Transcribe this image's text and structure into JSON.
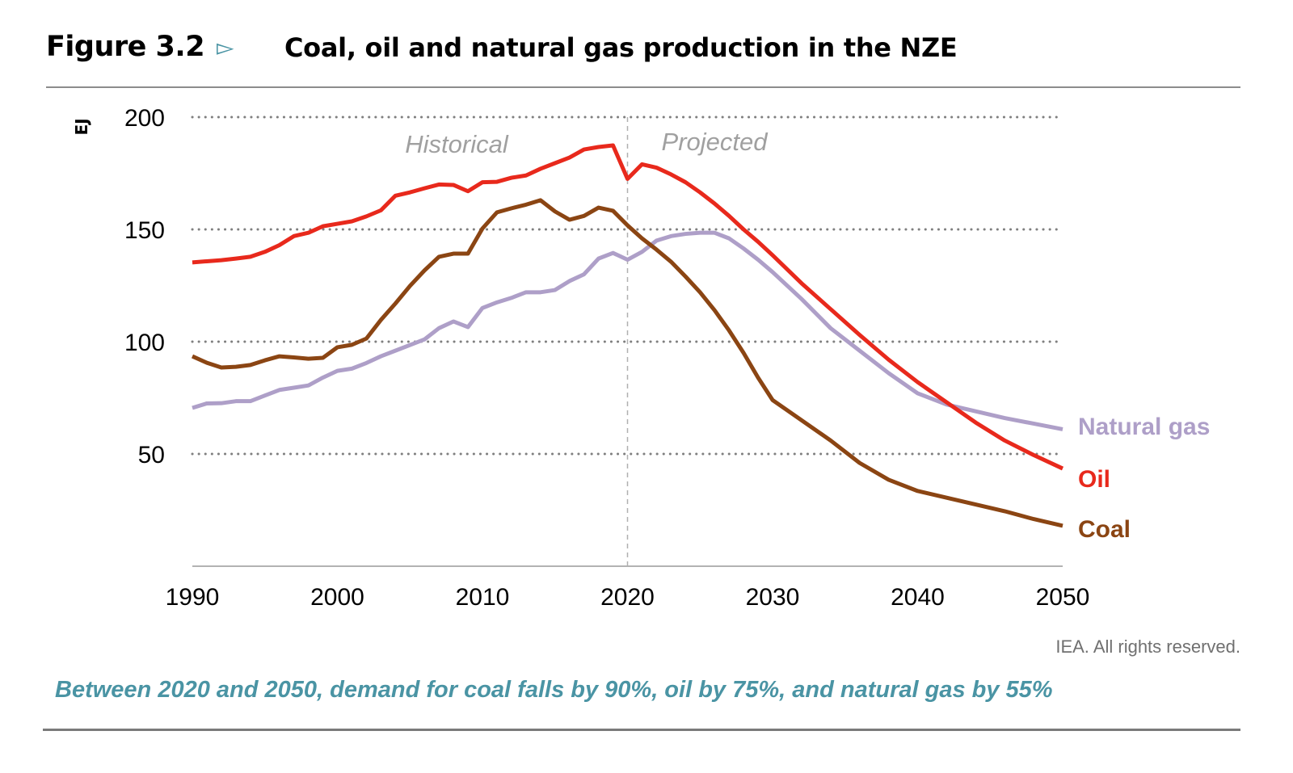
{
  "header": {
    "figure_label": "Figure 3.2",
    "arrow_icon": "triangle-right-outline-icon",
    "title": "Coal, oil and natural gas production in the NZE"
  },
  "footer": {
    "credit": "IEA. All rights reserved.",
    "caption": "Between 2020 and 2050, demand for coal falls by 90%, oil by 75%, and natural gas by 55%"
  },
  "colors": {
    "oil": "#e8291c",
    "natural_gas": "#ae9fc8",
    "coal": "#8b4513",
    "accent": "#4a94a4"
  },
  "chart_data": {
    "type": "line",
    "title": "Coal, oil and natural gas production in the NZE",
    "xlabel": "",
    "ylabel": "EJ",
    "xlim": [
      1990,
      2050
    ],
    "ylim": [
      0,
      200
    ],
    "x_ticks": [
      1990,
      2000,
      2010,
      2020,
      2030,
      2040,
      2050
    ],
    "y_ticks": [
      50,
      100,
      150,
      200
    ],
    "grid": "horizontal dotted",
    "legend": "labels at line ends (right)",
    "annotations": [
      {
        "text": "Historical",
        "year": 2009
      },
      {
        "text": "Projected",
        "year": 2026
      },
      {
        "text": "",
        "divider_year": 2020
      }
    ],
    "x": [
      1990,
      1991,
      1992,
      1993,
      1994,
      1995,
      1996,
      1997,
      1998,
      1999,
      2000,
      2001,
      2002,
      2003,
      2004,
      2005,
      2006,
      2007,
      2008,
      2009,
      2010,
      2011,
      2012,
      2013,
      2014,
      2015,
      2016,
      2017,
      2018,
      2019,
      2020,
      2021,
      2022,
      2023,
      2024,
      2025,
      2026,
      2027,
      2028,
      2029,
      2030,
      2032,
      2034,
      2036,
      2038,
      2040,
      2042,
      2044,
      2046,
      2048,
      2050
    ],
    "series": [
      {
        "name": "Natural gas",
        "color": "#ae9fc8",
        "values": [
          70.5,
          72.5,
          72.6,
          73.5,
          73.5,
          76,
          78.5,
          79.5,
          80.5,
          84,
          87,
          88,
          90.5,
          93.5,
          96,
          98.5,
          101,
          106,
          109,
          106.5,
          115,
          117.5,
          119.5,
          122,
          122,
          123,
          127,
          130,
          137,
          139.5,
          136.5,
          140,
          145,
          147,
          148,
          148.5,
          148.5,
          146,
          141.5,
          136.5,
          131,
          119,
          106,
          96,
          86,
          77,
          72,
          69,
          66,
          63.5,
          61
        ]
      },
      {
        "name": "Oil",
        "color": "#e8291c",
        "values": [
          135.3,
          135.8,
          136.3,
          137,
          137.8,
          140,
          143,
          147,
          148.5,
          151.4,
          152.5,
          153.6,
          155.8,
          158.5,
          165,
          166.5,
          168.3,
          170,
          169.8,
          167,
          171,
          171.2,
          173,
          174,
          177,
          179.5,
          182,
          185.6,
          186.7,
          187.4,
          172.5,
          179,
          177.5,
          174.5,
          171,
          166.5,
          161.5,
          156,
          150,
          144.5,
          138.5,
          126,
          114.5,
          103,
          92,
          82,
          73,
          64,
          56,
          49.5,
          43.5
        ]
      },
      {
        "name": "Coal",
        "color": "#8b4513",
        "values": [
          93.5,
          90.6,
          88.5,
          88.8,
          89.6,
          91.7,
          93.5,
          93,
          92.4,
          92.8,
          97.5,
          98.6,
          101.4,
          109.7,
          117,
          124.8,
          131.7,
          137.8,
          139.2,
          139.2,
          150.4,
          157.6,
          159.4,
          161,
          163,
          158,
          154.3,
          156,
          159.7,
          158.3,
          151.8,
          146,
          141,
          135.6,
          129,
          122,
          114,
          105,
          95,
          84,
          74,
          65,
          56,
          46,
          38.5,
          33.5,
          30.5,
          27.5,
          24.5,
          21,
          18
        ]
      }
    ]
  }
}
